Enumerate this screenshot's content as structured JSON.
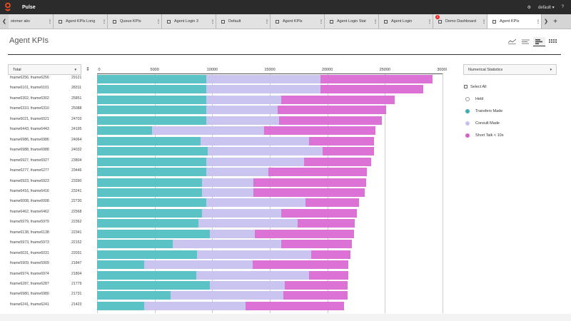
{
  "app": {
    "title": "Pulse",
    "user": "default"
  },
  "tabs": [
    {
      "label": "stomer abc",
      "active": false,
      "badge": null
    },
    {
      "label": "Agent KPIs Long",
      "active": false,
      "badge": null
    },
    {
      "label": "Queue KPIs",
      "active": false,
      "badge": null
    },
    {
      "label": "Agent Login 3",
      "active": false,
      "badge": null
    },
    {
      "label": "Default",
      "active": false,
      "badge": null
    },
    {
      "label": "Agent KPIs",
      "active": false,
      "badge": null
    },
    {
      "label": "Agent Login Stat",
      "active": false,
      "badge": null
    },
    {
      "label": "Agent Login",
      "active": false,
      "badge": null
    },
    {
      "label": "Demo Dashboard",
      "active": false,
      "badge": "1"
    },
    {
      "label": "Agent KPIs",
      "active": true,
      "badge": null
    }
  ],
  "page": {
    "title": "Agent KPIs"
  },
  "controls": {
    "sort_dropdown": "Total",
    "stats_dropdown": "Numerical Statistics"
  },
  "legend": {
    "select_all": "Select All",
    "items": [
      {
        "label": "Held",
        "color": "#ffffff"
      },
      {
        "label": "Transfers Made",
        "color": "#3aaeb0"
      },
      {
        "label": "Consult Made",
        "color": "#c5c2ee"
      },
      {
        "label": "Short Talk < 10s",
        "color": "#d860cc"
      }
    ]
  },
  "chart_data": {
    "type": "bar",
    "orientation": "horizontal",
    "stacked": true,
    "xlim": [
      0,
      30000
    ],
    "ticks": [
      0,
      5000,
      10000,
      15000,
      20000,
      25000,
      30000
    ],
    "grid": true,
    "series_colors": [
      "#5bc3c6",
      "#c9c5f0",
      "#dc72d6"
    ],
    "series_names": [
      "Transfers Made",
      "Consult Made",
      "Short Talk < 10s"
    ],
    "rows": [
      {
        "name": "fname6256, fname6256",
        "total": "29121",
        "values": [
          9500,
          9900,
          9721
        ]
      },
      {
        "name": "fname6101, fname6101",
        "total": "28311",
        "values": [
          9500,
          9900,
          8911
        ]
      },
      {
        "name": "fname6302, fname6302",
        "total": "25851",
        "values": [
          9500,
          6500,
          9851
        ]
      },
      {
        "name": "fname6310, fname6310",
        "total": "25088",
        "values": [
          9500,
          6200,
          9388
        ]
      },
      {
        "name": "fname6021, fname6021",
        "total": "24703",
        "values": [
          9500,
          6300,
          8903
        ]
      },
      {
        "name": "fname6443, fname6443",
        "total": "24195",
        "values": [
          4800,
          9700,
          9695
        ]
      },
      {
        "name": "fname6986, fname6986",
        "total": "24064",
        "values": [
          9000,
          9400,
          5664
        ]
      },
      {
        "name": "fname6988, fname6988",
        "total": "24032",
        "values": [
          9600,
          10000,
          4432
        ]
      },
      {
        "name": "fname6927, fname6927",
        "total": "23804",
        "values": [
          9500,
          8500,
          5804
        ]
      },
      {
        "name": "fname6277, fname6277",
        "total": "23446",
        "values": [
          9500,
          5400,
          8546
        ]
      },
      {
        "name": "fname6923, fname6923",
        "total": "23390",
        "values": [
          9100,
          4500,
          9790
        ]
      },
      {
        "name": "fname6416, fname6416",
        "total": "23241",
        "values": [
          9100,
          4500,
          9641
        ]
      },
      {
        "name": "fname6008, fname6008",
        "total": "22730",
        "values": [
          9500,
          8600,
          4630
        ]
      },
      {
        "name": "fname6462, fname6462",
        "total": "22568",
        "values": [
          9100,
          6900,
          6568
        ]
      },
      {
        "name": "fname5979, fname5979",
        "total": "22362",
        "values": [
          8800,
          8600,
          4962
        ]
      },
      {
        "name": "fname6138, fname6138",
        "total": "22341",
        "values": [
          9800,
          3900,
          8641
        ]
      },
      {
        "name": "fname5973, fname5973",
        "total": "22152",
        "values": [
          6600,
          9400,
          6152
        ]
      },
      {
        "name": "fname6031, fname6031",
        "total": "22031",
        "values": [
          8700,
          9900,
          3431
        ]
      },
      {
        "name": "fname5909, fname5909",
        "total": "21847",
        "values": [
          4100,
          9400,
          8347
        ]
      },
      {
        "name": "fname6974, fname6974",
        "total": "21804",
        "values": [
          8600,
          9800,
          3404
        ]
      },
      {
        "name": "fname6287, fname6287",
        "total": "21779",
        "values": [
          9800,
          6500,
          5479
        ]
      },
      {
        "name": "fname6980, fname6980",
        "total": "21731",
        "values": [
          6400,
          9800,
          5531
        ]
      },
      {
        "name": "fname6241, fname6241",
        "total": "21423",
        "values": [
          4100,
          8800,
          8523
        ]
      }
    ]
  }
}
